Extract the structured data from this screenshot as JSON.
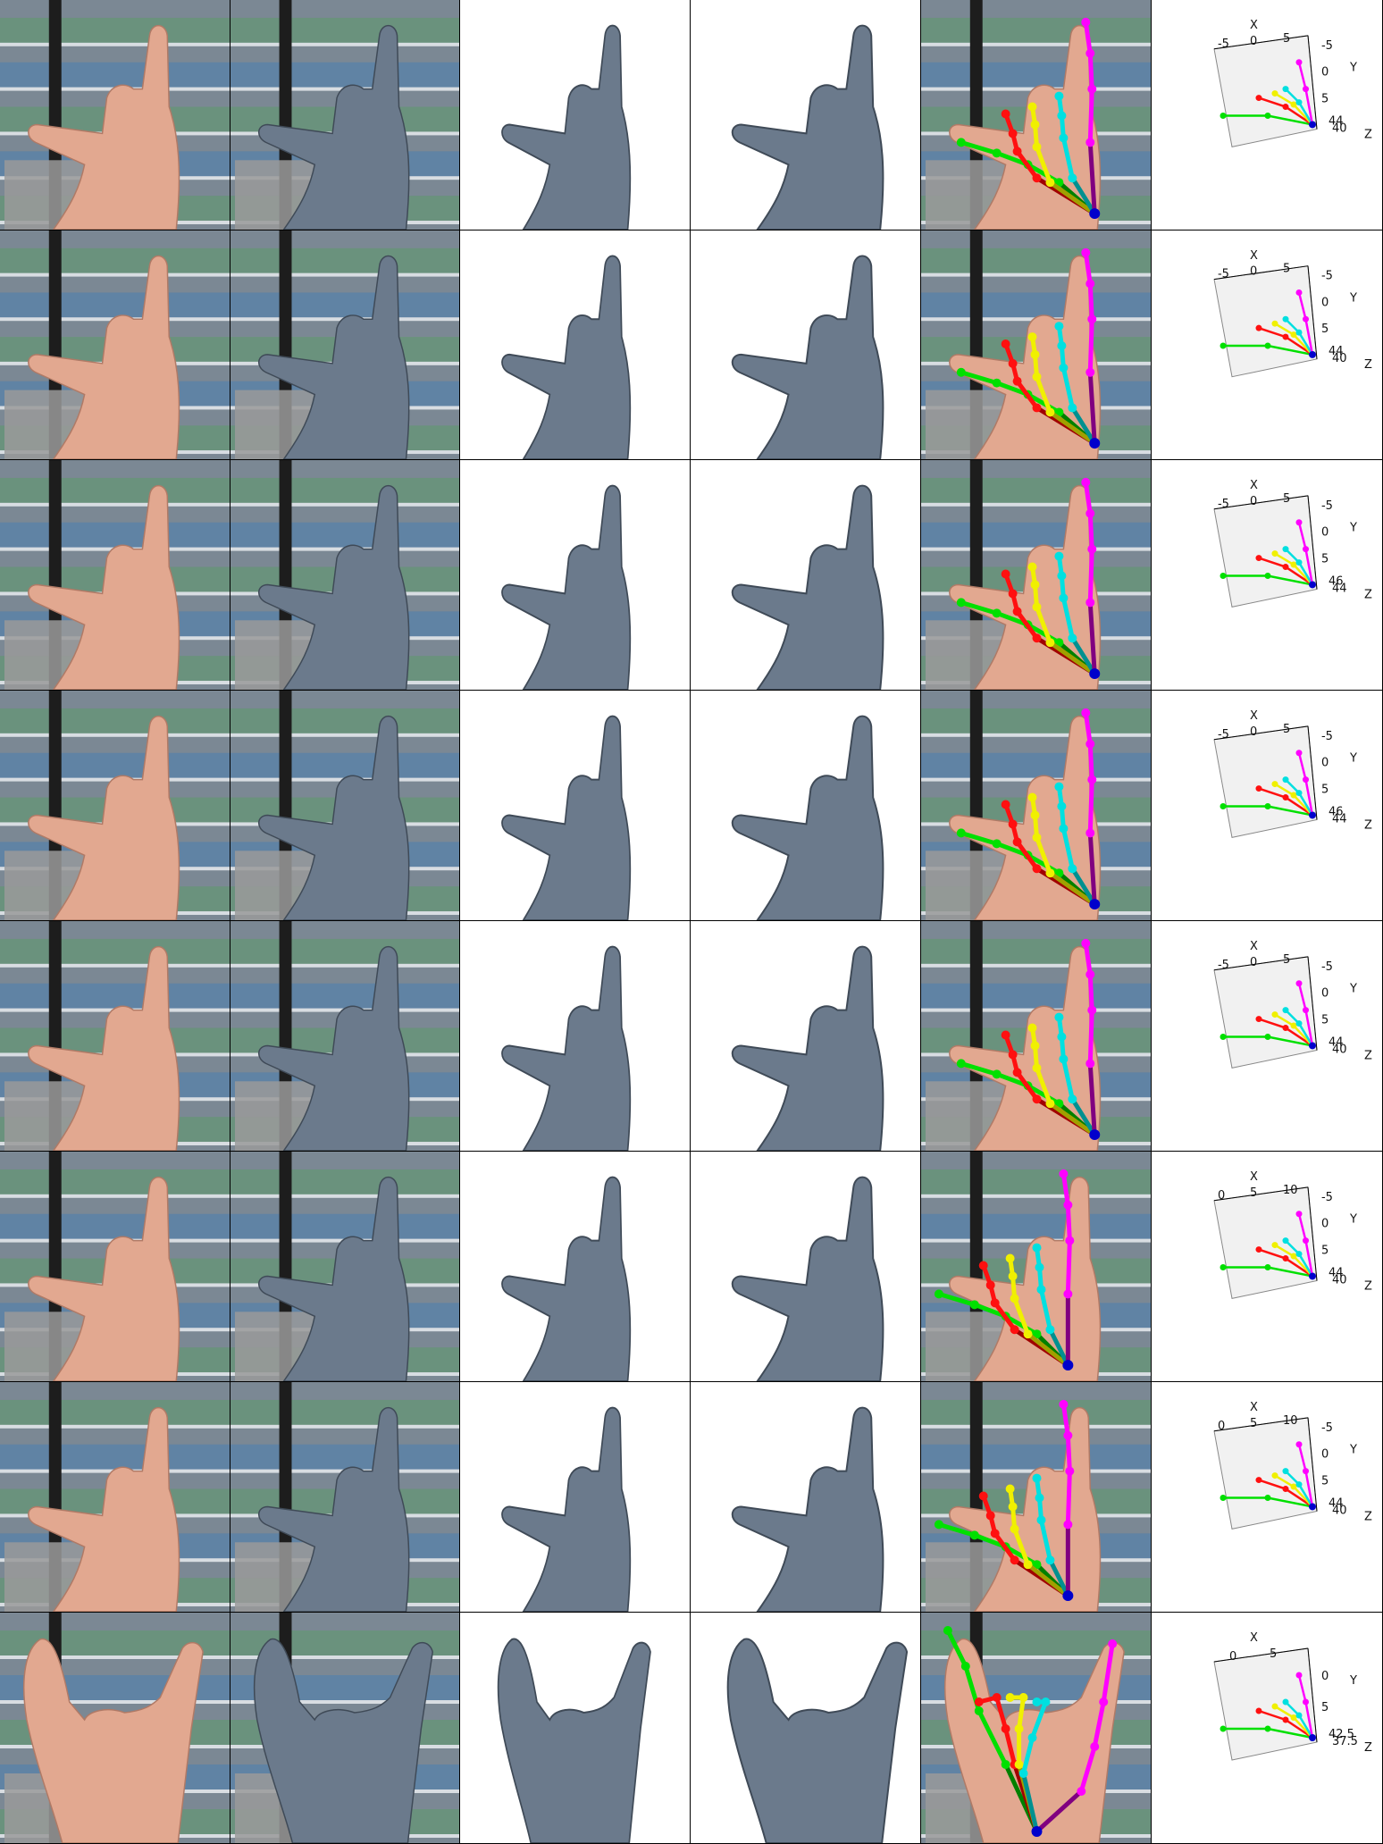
{
  "grid": {
    "rows": 8,
    "columns": [
      "photo",
      "mesh-overlay",
      "mesh-front",
      "mesh-side",
      "keypoints-overlay",
      "skeleton-3d"
    ]
  },
  "colors": {
    "thumb": "#00e000",
    "thumb_dark": "#008000",
    "index": "#ff1010",
    "index_dark": "#a00000",
    "middle": "#f0f000",
    "middle_dark": "#a0a000",
    "ring": "#00e0e0",
    "ring_dark": "#009090",
    "pinky": "#ff00ff",
    "pinky_dark": "#800080",
    "wrist": "#0000cc",
    "mesh": "#6b7a8c",
    "mesh_dark": "#3f4a57",
    "skin": "#e2a890",
    "background_shelf": "#7a8a96"
  },
  "plots": [
    {
      "x_ticks": [
        "-5",
        "0",
        "5"
      ],
      "y_ticks": [
        "-5",
        "0",
        "5"
      ],
      "z_ticks": [
        "44",
        "40"
      ],
      "x_label": "X",
      "y_label": "Y",
      "z_label": "Z"
    },
    {
      "x_ticks": [
        "-5",
        "0",
        "5"
      ],
      "y_ticks": [
        "-5",
        "0",
        "5"
      ],
      "z_ticks": [
        "44",
        "40"
      ],
      "x_label": "X",
      "y_label": "Y",
      "z_label": "Z"
    },
    {
      "x_ticks": [
        "-5",
        "0",
        "5"
      ],
      "y_ticks": [
        "-5",
        "0",
        "5"
      ],
      "z_ticks": [
        "46",
        "44"
      ],
      "x_label": "X",
      "y_label": "Y",
      "z_label": "Z"
    },
    {
      "x_ticks": [
        "-5",
        "0",
        "5"
      ],
      "y_ticks": [
        "-5",
        "0",
        "5"
      ],
      "z_ticks": [
        "46",
        "44"
      ],
      "x_label": "X",
      "y_label": "Y",
      "z_label": "Z"
    },
    {
      "x_ticks": [
        "-5",
        "0",
        "5"
      ],
      "y_ticks": [
        "-5",
        "0",
        "5"
      ],
      "z_ticks": [
        "44",
        "40"
      ],
      "x_label": "X",
      "y_label": "Y",
      "z_label": "Z"
    },
    {
      "x_ticks": [
        "0",
        "5",
        "10"
      ],
      "y_ticks": [
        "-5",
        "0",
        "5"
      ],
      "z_ticks": [
        "44",
        "40"
      ],
      "x_label": "X",
      "y_label": "Y",
      "z_label": "Z"
    },
    {
      "x_ticks": [
        "0",
        "5",
        "10"
      ],
      "y_ticks": [
        "-5",
        "0",
        "5"
      ],
      "z_ticks": [
        "44",
        "40"
      ],
      "x_label": "X",
      "y_label": "Y",
      "z_label": "Z"
    },
    {
      "x_ticks": [
        "0",
        "5"
      ],
      "y_ticks": [
        "0",
        "5"
      ],
      "z_ticks": [
        "42.5",
        "37.5"
      ],
      "x_label": "X",
      "y_label": "Y",
      "z_label": "Z"
    }
  ]
}
